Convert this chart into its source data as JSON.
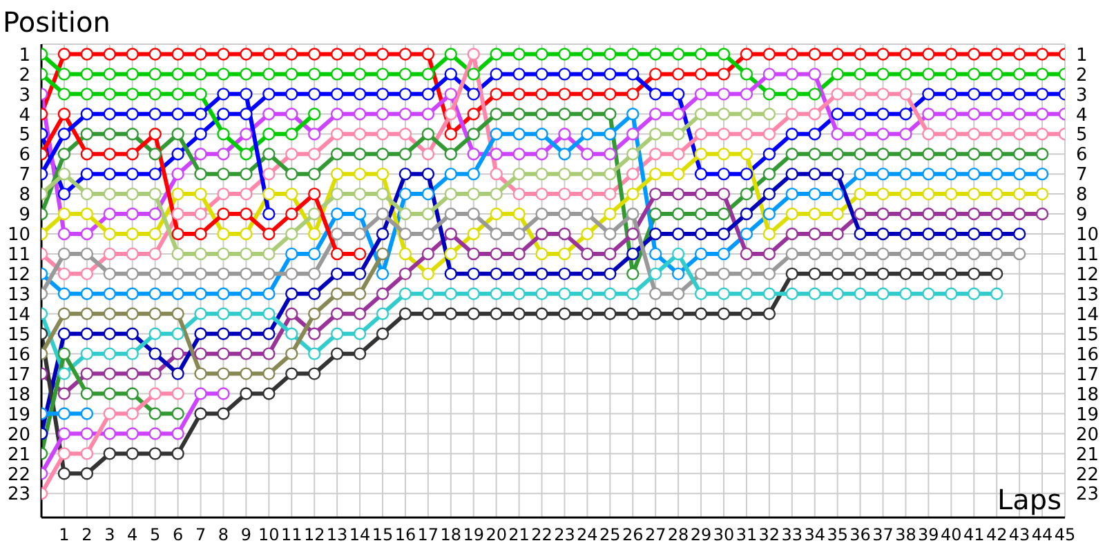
{
  "chart_data": {
    "type": "line",
    "xlabel": "Laps",
    "ylabel": "Position",
    "marker": "circle",
    "line_style": "solid",
    "grid": true,
    "x": [
      0,
      1,
      2,
      3,
      4,
      5,
      6,
      7,
      8,
      9,
      10,
      11,
      12,
      13,
      14,
      15,
      16,
      17,
      18,
      19,
      20,
      21,
      22,
      23,
      24,
      25,
      26,
      27,
      28,
      29,
      30,
      31,
      32,
      33,
      34,
      35,
      36,
      37,
      38,
      39,
      40,
      41,
      42,
      43,
      44,
      45
    ],
    "xlim": [
      0,
      45
    ],
    "xticks": [
      1,
      2,
      3,
      4,
      5,
      6,
      7,
      8,
      9,
      10,
      11,
      12,
      13,
      14,
      15,
      16,
      17,
      18,
      19,
      20,
      21,
      22,
      23,
      24,
      25,
      26,
      27,
      28,
      29,
      30,
      31,
      32,
      33,
      34,
      35,
      36,
      37,
      38,
      39,
      40,
      41,
      42,
      43,
      44,
      45
    ],
    "ylim": [
      24.2,
      0.5
    ],
    "yticks": [
      1,
      2,
      3,
      4,
      5,
      6,
      7,
      8,
      9,
      10,
      11,
      12,
      13,
      14,
      15,
      16,
      17,
      18,
      19,
      20,
      21,
      22,
      23
    ],
    "y2lim": [
      24.2,
      0.5
    ],
    "y2ticks": [
      1,
      2,
      3,
      4,
      5,
      6,
      7,
      8,
      9,
      10,
      11,
      12,
      13,
      14,
      15,
      16,
      17,
      18,
      19,
      20,
      21,
      22,
      23
    ],
    "series": [
      {
        "color": "#ff0000",
        "values": [
          4,
          1,
          1,
          1,
          1,
          1,
          1,
          1,
          1,
          1,
          1,
          1,
          1,
          1,
          1,
          1,
          1,
          1,
          5,
          4,
          3,
          3,
          3,
          3,
          3,
          3,
          3,
          2,
          2,
          2,
          2,
          1,
          1,
          1,
          1,
          1,
          1,
          1,
          1,
          1,
          1,
          1,
          1,
          1,
          1,
          1
        ]
      },
      {
        "color": "#00cc00",
        "values": [
          1,
          2,
          2,
          2,
          2,
          2,
          2,
          2,
          2,
          2,
          2,
          2,
          2,
          2,
          2,
          2,
          2,
          2,
          1,
          2,
          1,
          1,
          1,
          1,
          1,
          1,
          1,
          1,
          1,
          1,
          1,
          2,
          3,
          3,
          3,
          2,
          2,
          2,
          2,
          2,
          2,
          2,
          2,
          2,
          2,
          2
        ]
      },
      {
        "color": "#0000ff",
        "values": [
          5,
          8,
          7,
          7,
          7,
          7,
          6,
          5,
          4,
          4,
          3,
          3,
          3,
          3,
          3,
          3,
          3,
          3,
          2,
          3,
          2,
          2,
          2,
          2,
          2,
          2,
          2,
          3,
          3,
          7,
          7,
          7,
          6,
          5,
          5,
          4,
          4,
          4,
          4,
          3,
          3,
          3,
          3,
          3,
          3,
          3
        ]
      },
      {
        "color": "#cc44ff",
        "values": [
          3,
          10,
          10,
          9,
          9,
          9,
          7,
          6,
          6,
          5,
          4,
          4,
          5,
          4,
          4,
          4,
          4,
          4,
          3,
          6,
          6,
          6,
          6,
          5,
          6,
          6,
          5,
          4,
          4,
          3,
          3,
          3,
          2,
          2,
          2,
          5,
          5,
          5,
          5,
          4,
          4,
          4,
          4,
          4,
          4,
          4
        ]
      },
      {
        "color": "#ff88aa",
        "values": [
          11,
          12,
          12,
          11,
          11,
          11,
          9,
          9,
          8,
          8,
          7,
          6,
          6,
          5,
          5,
          5,
          5,
          6,
          4,
          1,
          7,
          8,
          8,
          8,
          8,
          8,
          7,
          6,
          6,
          5,
          5,
          5,
          5,
          4,
          4,
          3,
          3,
          3,
          3,
          5,
          5,
          5,
          5,
          5,
          5,
          5
        ]
      },
      {
        "color": "#339933",
        "values": [
          9,
          6,
          5,
          5,
          5,
          6,
          5,
          7,
          7,
          7,
          6,
          7,
          7,
          6,
          6,
          6,
          6,
          5,
          6,
          5,
          4,
          4,
          4,
          4,
          4,
          4,
          12,
          9,
          9,
          9,
          9,
          8,
          7,
          6,
          6,
          6,
          6,
          6,
          6,
          6,
          6,
          6,
          6,
          6,
          6,
          null
        ]
      },
      {
        "color": "#0099ff",
        "values": [
          12,
          13,
          13,
          13,
          13,
          13,
          13,
          13,
          13,
          13,
          13,
          11,
          11,
          9,
          9,
          12,
          8,
          8,
          7,
          7,
          5,
          5,
          5,
          6,
          5,
          5,
          4,
          11,
          12,
          11,
          11,
          10,
          9,
          8,
          8,
          8,
          7,
          7,
          7,
          7,
          7,
          7,
          7,
          7,
          7,
          null
        ]
      },
      {
        "color": "#dddd00",
        "values": [
          10,
          9,
          9,
          10,
          10,
          10,
          8,
          8,
          10,
          10,
          8,
          8,
          10,
          7,
          7,
          7,
          11,
          12,
          11,
          10,
          9,
          9,
          11,
          11,
          10,
          9,
          8,
          7,
          7,
          6,
          6,
          6,
          10,
          9,
          9,
          9,
          8,
          8,
          8,
          8,
          8,
          8,
          8,
          8,
          8,
          null
        ]
      },
      {
        "color": "#993399",
        "values": [
          17,
          18,
          17,
          17,
          17,
          17,
          16,
          16,
          16,
          16,
          16,
          14,
          15,
          14,
          14,
          13,
          12,
          11,
          10,
          11,
          11,
          11,
          10,
          10,
          11,
          11,
          10,
          8,
          8,
          8,
          8,
          11,
          11,
          10,
          10,
          10,
          9,
          9,
          9,
          9,
          9,
          9,
          9,
          9,
          9,
          null
        ]
      },
      {
        "color": "#0000bb",
        "values": [
          20,
          15,
          15,
          15,
          15,
          16,
          17,
          15,
          15,
          15,
          15,
          13,
          13,
          12,
          12,
          10,
          7,
          7,
          12,
          12,
          12,
          12,
          12,
          12,
          12,
          12,
          11,
          10,
          10,
          10,
          10,
          9,
          8,
          7,
          7,
          7,
          10,
          10,
          10,
          10,
          10,
          10,
          10,
          10,
          null,
          null
        ]
      },
      {
        "color": "#999999",
        "values": [
          13,
          11,
          11,
          12,
          12,
          12,
          12,
          12,
          12,
          12,
          12,
          12,
          12,
          10,
          10,
          9,
          10,
          10,
          9,
          9,
          10,
          10,
          9,
          9,
          9,
          10,
          9,
          13,
          13,
          12,
          12,
          12,
          12,
          11,
          11,
          11,
          11,
          11,
          11,
          11,
          11,
          11,
          11,
          11,
          null,
          null
        ]
      },
      {
        "color": "#333333",
        "values": [
          15,
          22,
          22,
          21,
          21,
          21,
          21,
          19,
          19,
          18,
          18,
          17,
          17,
          16,
          16,
          15,
          14,
          14,
          14,
          14,
          14,
          14,
          14,
          14,
          14,
          14,
          14,
          14,
          14,
          14,
          14,
          14,
          14,
          12,
          12,
          12,
          12,
          12,
          12,
          12,
          12,
          12,
          12,
          null,
          null,
          null
        ]
      },
      {
        "color": "#33cccc",
        "values": [
          14,
          17,
          16,
          16,
          16,
          15,
          15,
          14,
          14,
          14,
          14,
          15,
          16,
          15,
          15,
          14,
          13,
          13,
          13,
          13,
          13,
          13,
          13,
          13,
          13,
          13,
          13,
          12,
          11,
          13,
          13,
          13,
          13,
          13,
          13,
          13,
          13,
          13,
          13,
          13,
          13,
          13,
          13,
          null,
          null,
          null
        ]
      },
      {
        "color": "#aacc77",
        "values": [
          8,
          7,
          8,
          8,
          8,
          8,
          11,
          11,
          11,
          11,
          11,
          10,
          9,
          8,
          8,
          8,
          9,
          9,
          8,
          8,
          8,
          7,
          7,
          7,
          7,
          7,
          6,
          5,
          5,
          4,
          4,
          4,
          4,
          null,
          null,
          null,
          null,
          null,
          null,
          null,
          null,
          null,
          null,
          null,
          null,
          null
        ]
      },
      {
        "color": "#888855",
        "values": [
          16,
          14,
          14,
          14,
          14,
          14,
          14,
          17,
          17,
          17,
          17,
          16,
          14,
          13,
          13,
          11,
          null,
          null,
          null,
          null,
          null,
          null,
          null,
          null,
          null,
          null,
          null,
          null,
          null,
          null,
          null,
          null,
          null,
          null,
          null,
          null,
          null,
          null,
          null,
          null,
          null,
          null,
          null,
          null,
          null,
          null
        ]
      },
      {
        "color": "#00cc00",
        "values": [
          2,
          3,
          3,
          3,
          3,
          3,
          3,
          3,
          5,
          6,
          5,
          5,
          4,
          null,
          null,
          null,
          null,
          null,
          null,
          null,
          null,
          null,
          null,
          null,
          null,
          null,
          null,
          null,
          null,
          null,
          null,
          null,
          null,
          null,
          null,
          null,
          null,
          null,
          null,
          null,
          null,
          null,
          null,
          null,
          null,
          null
        ]
      },
      {
        "color": "#ff0000",
        "values": [
          6,
          4,
          6,
          6,
          6,
          5,
          10,
          10,
          9,
          9,
          10,
          9,
          8,
          11,
          11,
          null,
          null,
          null,
          null,
          null,
          null,
          null,
          null,
          null,
          null,
          null,
          null,
          null,
          null,
          null,
          null,
          null,
          null,
          null,
          null,
          null,
          null,
          null,
          null,
          null,
          null,
          null,
          null,
          null,
          null,
          null
        ]
      },
      {
        "color": "#0000ff",
        "values": [
          7,
          5,
          4,
          4,
          4,
          4,
          4,
          4,
          3,
          3,
          9,
          null,
          null,
          null,
          null,
          null,
          null,
          null,
          null,
          null,
          null,
          null,
          null,
          null,
          null,
          null,
          null,
          null,
          null,
          null,
          null,
          null,
          null,
          null,
          null,
          null,
          null,
          null,
          null,
          null,
          null,
          null,
          null,
          null,
          null,
          null
        ]
      },
      {
        "color": "#339933",
        "values": [
          21,
          16,
          18,
          18,
          18,
          19,
          19,
          null,
          null,
          null,
          null,
          null,
          null,
          null,
          null,
          null,
          null,
          null,
          null,
          null,
          null,
          null,
          null,
          null,
          null,
          null,
          null,
          null,
          null,
          null,
          null,
          null,
          null,
          null,
          null,
          null,
          null,
          null,
          null,
          null,
          null,
          null,
          null,
          null,
          null,
          null
        ]
      },
      {
        "color": "#0099ff",
        "values": [
          19,
          19,
          19,
          null,
          null,
          null,
          null,
          null,
          null,
          null,
          null,
          null,
          null,
          null,
          null,
          null,
          null,
          null,
          null,
          null,
          null,
          null,
          null,
          null,
          null,
          null,
          null,
          null,
          null,
          null,
          null,
          null,
          null,
          null,
          null,
          null,
          null,
          null,
          null,
          null,
          null,
          null,
          null,
          null,
          null,
          null
        ]
      },
      {
        "color": "#cc44ff",
        "values": [
          22,
          20,
          20,
          20,
          20,
          20,
          20,
          18,
          18,
          null,
          null,
          null,
          null,
          null,
          null,
          null,
          null,
          null,
          null,
          null,
          null,
          null,
          null,
          null,
          null,
          null,
          null,
          null,
          null,
          null,
          null,
          null,
          null,
          null,
          null,
          null,
          null,
          null,
          null,
          null,
          null,
          null,
          null,
          null,
          null,
          null
        ]
      },
      {
        "color": "#ff88aa",
        "values": [
          23,
          21,
          21,
          19,
          19,
          18,
          18,
          null,
          null,
          null,
          null,
          null,
          null,
          null,
          null,
          null,
          null,
          null,
          null,
          null,
          null,
          null,
          null,
          null,
          null,
          null,
          null,
          null,
          null,
          null,
          null,
          null,
          null,
          null,
          null,
          null,
          null,
          null,
          null,
          null,
          null,
          null,
          null,
          null,
          null,
          null
        ]
      }
    ]
  }
}
